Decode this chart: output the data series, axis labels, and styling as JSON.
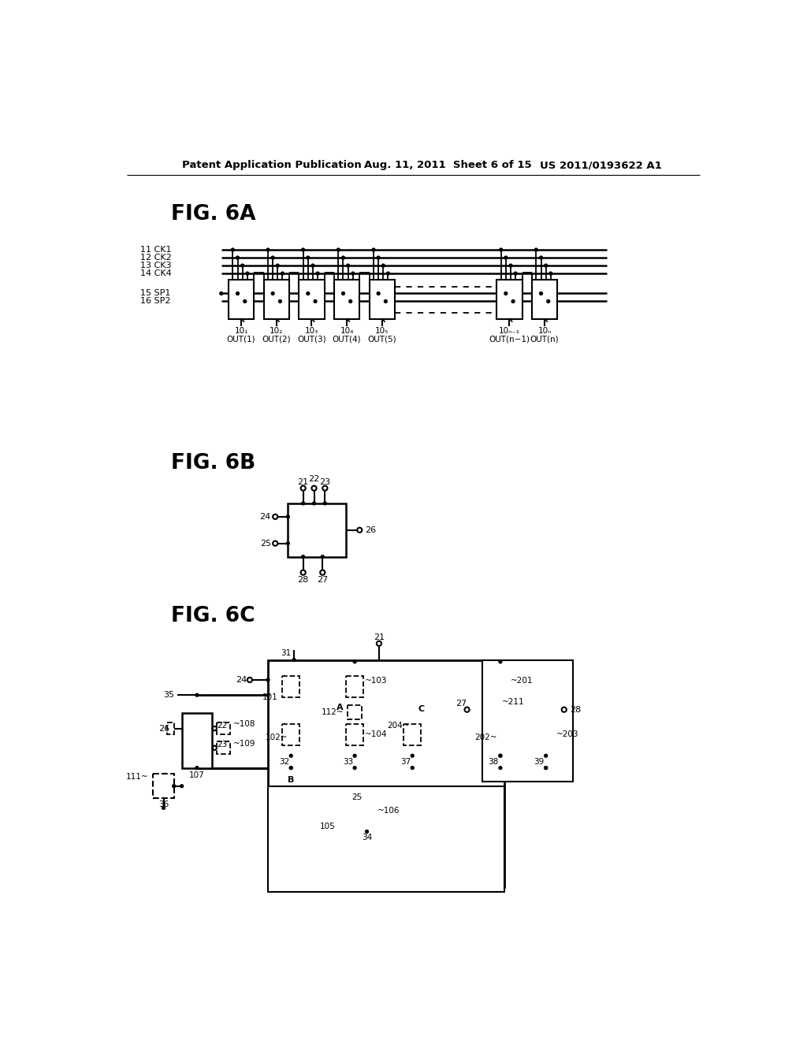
{
  "background_color": "#ffffff",
  "header_left": "Patent Application Publication",
  "header_center": "Aug. 11, 2011  Sheet 6 of 15",
  "header_right": "US 2011/0193622 A1"
}
